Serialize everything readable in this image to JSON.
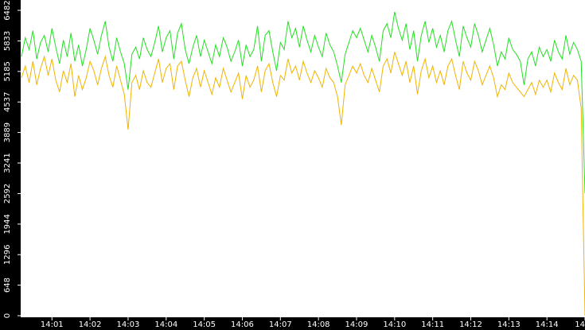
{
  "chart_data": {
    "type": "line",
    "categories": [
      null,
      null,
      null,
      null,
      null,
      null,
      null,
      null,
      "14:01",
      null,
      null,
      null,
      null,
      null,
      null,
      null,
      null,
      null,
      "14:02",
      null,
      null,
      null,
      null,
      null,
      null,
      null,
      null,
      null,
      "14:03",
      null,
      null,
      null,
      null,
      null,
      null,
      null,
      null,
      null,
      "14:04",
      null,
      null,
      null,
      null,
      null,
      null,
      null,
      null,
      null,
      "14:05",
      null,
      null,
      null,
      null,
      null,
      null,
      null,
      null,
      null,
      "14:06",
      null,
      null,
      null,
      null,
      null,
      null,
      null,
      null,
      null,
      "14:07",
      null,
      null,
      null,
      null,
      null,
      null,
      null,
      null,
      null,
      "14:08",
      null,
      null,
      null,
      null,
      null,
      null,
      null,
      null,
      null,
      "14:09",
      null,
      null,
      null,
      null,
      null,
      null,
      null,
      null,
      null,
      "14:10",
      null,
      null,
      null,
      null,
      null,
      null,
      null,
      null,
      null,
      "14:11",
      null,
      null,
      null,
      null,
      null,
      null,
      null,
      null,
      null,
      "14:12",
      null,
      null,
      null,
      null,
      null,
      null,
      null,
      null,
      null,
      "14:13",
      null,
      null,
      null,
      null,
      null,
      null,
      null,
      null,
      null,
      "14:14",
      null,
      null,
      null,
      null,
      null,
      null,
      null,
      null,
      null,
      "14"
    ],
    "series": [
      {
        "color": "#22e022",
        "values": [
          5500,
          5900,
          5650,
          6050,
          5450,
          5800,
          5950,
          5600,
          6100,
          5700,
          5350,
          5850,
          5500,
          6000,
          5400,
          5750,
          5300,
          5650,
          6100,
          5850,
          5550,
          5950,
          6250,
          5700,
          5400,
          5900,
          5600,
          5350,
          4800,
          5550,
          5700,
          5450,
          5900,
          5650,
          5500,
          5800,
          6150,
          5600,
          5900,
          6050,
          5450,
          6000,
          6200,
          5650,
          5350,
          5700,
          5950,
          5500,
          5850,
          5600,
          5350,
          5750,
          5500,
          5900,
          5700,
          5400,
          5600,
          5850,
          5300,
          5750,
          5500,
          5650,
          6150,
          5400,
          5950,
          6050,
          5600,
          5200,
          5800,
          5650,
          6250,
          5900,
          6100,
          5700,
          6150,
          5850,
          5600,
          5950,
          5700,
          5500,
          6000,
          5750,
          5600,
          5300,
          4950,
          5550,
          5800,
          6050,
          5900,
          6100,
          5850,
          5600,
          5950,
          5700,
          5400,
          6050,
          6200,
          5900,
          6450,
          6100,
          5850,
          6200,
          5650,
          6050,
          5400,
          5950,
          6250,
          5800,
          6100,
          5700,
          5950,
          5600,
          6050,
          6250,
          5850,
          5500,
          6150,
          5900,
          5700,
          6200,
          5950,
          5600,
          5850,
          6100,
          5750,
          5300,
          5600,
          5450,
          5900,
          5650,
          5550,
          5400,
          4900,
          5450,
          5600,
          5300,
          5700,
          5500,
          5650,
          5400,
          5850,
          5600,
          5450,
          5950,
          5550,
          5800,
          5650,
          5400,
          2600
        ]
      },
      {
        "color": "#f0b400",
        "values": [
          5050,
          5300,
          4950,
          5400,
          4900,
          5250,
          5500,
          5100,
          5450,
          5000,
          4750,
          5200,
          4950,
          5350,
          4650,
          5100,
          4800,
          5050,
          5400,
          5200,
          4900,
          5250,
          5500,
          5100,
          4850,
          5300,
          5000,
          4700,
          3950,
          4950,
          5100,
          4800,
          5200,
          4950,
          4850,
          5150,
          5450,
          4950,
          5250,
          5350,
          4800,
          5300,
          5400,
          5000,
          4650,
          5050,
          5250,
          4850,
          5200,
          4950,
          4700,
          5050,
          4850,
          5250,
          5000,
          4750,
          4950,
          5150,
          4600,
          5100,
          4850,
          5000,
          5300,
          4750,
          5200,
          5350,
          4950,
          4650,
          5100,
          5000,
          5450,
          5150,
          5300,
          5000,
          5400,
          5150,
          4950,
          5200,
          5050,
          4850,
          5250,
          5050,
          4950,
          4650,
          4050,
          4900,
          5100,
          5300,
          5150,
          5350,
          5100,
          4950,
          5250,
          5000,
          4750,
          5300,
          5450,
          5150,
          5600,
          5350,
          5100,
          5400,
          4950,
          5300,
          4700,
          5200,
          5450,
          5050,
          5300,
          4950,
          5200,
          4900,
          5300,
          5450,
          5100,
          4800,
          5400,
          5150,
          5000,
          5400,
          5200,
          4900,
          5100,
          5300,
          5050,
          4650,
          4900,
          4800,
          5150,
          4950,
          4850,
          4750,
          4650,
          4800,
          4950,
          4700,
          5000,
          4850,
          5000,
          4750,
          5150,
          4950,
          4800,
          5250,
          4900,
          5100,
          5000,
          4400,
          0
        ]
      }
    ],
    "ylim": [
      0,
      6482
    ],
    "yticks": [
      0,
      648,
      1296,
      1944,
      2592,
      3241,
      3889,
      4537,
      5185,
      5833,
      6482
    ]
  }
}
